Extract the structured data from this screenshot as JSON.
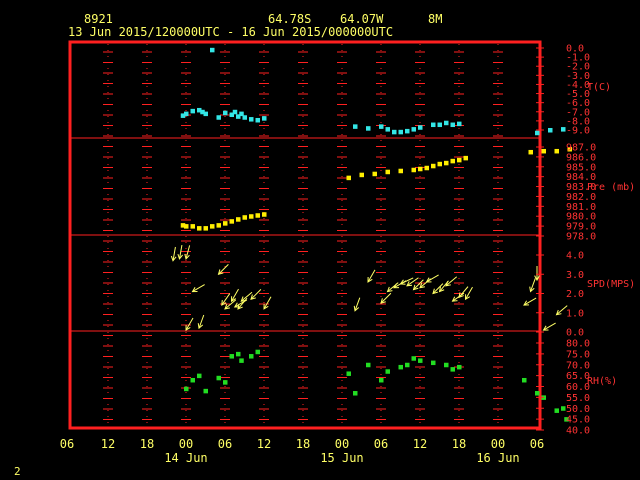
{
  "header": {
    "station": "8921",
    "lat": "64.78S",
    "lon": "64.07W",
    "height": "8M",
    "period": "13 Jun 2015/120000UTC - 16 Jun 2015/000000UTC"
  },
  "footer": {
    "page_number": "2"
  },
  "time_axis": {
    "hour_labels": [
      "06",
      "12",
      "18",
      "00",
      "06",
      "12",
      "18",
      "00",
      "06",
      "12",
      "18",
      "00",
      "06"
    ],
    "date_labels": [
      "14 Jun",
      "15 Jun",
      "16 Jun"
    ]
  },
  "colors": {
    "frame": "#ff2020",
    "text": "#ffff66",
    "temp": "#33e6e6",
    "pres": "#ffee00",
    "wind": "#ffff66",
    "rh": "#22dd22"
  },
  "chart_data": [
    {
      "type": "scatter",
      "name": "temperature",
      "ylabel": "T(C)",
      "ylim": [
        -9.0,
        0.0
      ],
      "tick_labels": [
        "0.0",
        "-1.0",
        "-2.0",
        "-3.0",
        "-4.0",
        "-5.0",
        "-6.0",
        "-7.0",
        "-8.0",
        "-9.0"
      ],
      "x_hours": [
        -0.5,
        0,
        1,
        2,
        2.5,
        3,
        4,
        5,
        6,
        7,
        7.5,
        8,
        8.5,
        9,
        10,
        11,
        12,
        26,
        28,
        30,
        31,
        32,
        33,
        34,
        35,
        36,
        38,
        39,
        40,
        41,
        42,
        54,
        56,
        58
      ],
      "values": [
        -7.4,
        -7.2,
        -6.9,
        -6.8,
        -7.0,
        -7.2,
        -0.2,
        -7.6,
        -7.1,
        -7.3,
        -7.0,
        -7.5,
        -7.2,
        -7.6,
        -7.8,
        -7.9,
        -7.7,
        -8.6,
        -8.8,
        -8.6,
        -8.9,
        -9.2,
        -9.2,
        -9.1,
        -8.9,
        -8.7,
        -8.4,
        -8.4,
        -8.2,
        -8.4,
        -8.3,
        -9.3,
        -9.0,
        -8.9
      ]
    },
    {
      "type": "scatter",
      "name": "pressure",
      "ylabel": "Pre (mb)",
      "ylim": [
        978.0,
        987.0
      ],
      "tick_labels": [
        "987.0",
        "986.0",
        "985.0",
        "984.0",
        "983.0",
        "982.0",
        "981.0",
        "980.0",
        "979.0",
        "978.0"
      ],
      "x_hours": [
        -0.5,
        0,
        1,
        2,
        3,
        4,
        5,
        6,
        7,
        8,
        9,
        10,
        11,
        12,
        25,
        27,
        29,
        31,
        33,
        35,
        36,
        37,
        38,
        39,
        40,
        41,
        42,
        43,
        53,
        55,
        57,
        59
      ],
      "values": [
        979.1,
        979.0,
        979.0,
        978.8,
        978.8,
        979.0,
        979.1,
        979.3,
        979.5,
        979.7,
        979.9,
        980.0,
        980.1,
        980.2,
        983.9,
        984.2,
        984.3,
        984.5,
        984.6,
        984.7,
        984.8,
        984.9,
        985.1,
        985.3,
        985.4,
        985.6,
        985.7,
        985.9,
        986.5,
        986.6,
        986.6,
        986.8
      ]
    },
    {
      "type": "scatter",
      "name": "wind",
      "ylabel": "SPD(MPS)",
      "ylim": [
        0.0,
        4.0
      ],
      "tick_labels": [
        "4.0",
        "3.0",
        "2.0",
        "1.0",
        "0.0"
      ],
      "x_hours": [
        -2,
        -1,
        0,
        0,
        1,
        2,
        5,
        5.5,
        6,
        7,
        7.5,
        8,
        8.5,
        10,
        12,
        26,
        28,
        30,
        31,
        32,
        33,
        34,
        35,
        36,
        37,
        38,
        39,
        40,
        41,
        42,
        43,
        52,
        53,
        54,
        55,
        57
      ],
      "values": [
        3.7,
        3.8,
        3.8,
        0.1,
        2.1,
        0.2,
        3.0,
        1.4,
        1.2,
        1.6,
        1.3,
        1.2,
        1.6,
        1.7,
        1.2,
        1.1,
        2.6,
        1.5,
        2.1,
        2.3,
        2.5,
        2.4,
        2.2,
        2.3,
        2.6,
        2.0,
        2.1,
        2.4,
        1.6,
        1.8,
        1.7,
        1.4,
        2.1,
        2.7,
        0.1,
        0.9
      ],
      "directions_deg": [
        80,
        80,
        75,
        60,
        30,
        70,
        45,
        55,
        40,
        60,
        30,
        50,
        40,
        45,
        60,
        70,
        60,
        45,
        40,
        30,
        25,
        35,
        45,
        40,
        30,
        45,
        50,
        40,
        35,
        50,
        60,
        30,
        70,
        90,
        30,
        40
      ]
    },
    {
      "type": "scatter",
      "name": "relative_humidity",
      "ylabel": "RH(%)",
      "ylim": [
        40.0,
        80.0
      ],
      "tick_labels": [
        "80.0",
        "75.0",
        "70.0",
        "65.0",
        "60.0",
        "55.0",
        "50.0",
        "45.0",
        "40.0"
      ],
      "x_hours": [
        0,
        1,
        2,
        3,
        5,
        6,
        7,
        8,
        8.5,
        10,
        11,
        25,
        26,
        28,
        30,
        31,
        33,
        34,
        35,
        36,
        38,
        40,
        41,
        42,
        52,
        54,
        55,
        57,
        58,
        58.5
      ],
      "values": [
        59,
        63,
        65,
        58,
        64,
        62,
        74,
        75,
        72,
        74,
        76,
        66,
        57,
        70,
        63,
        67,
        69,
        70,
        73,
        72,
        71,
        70,
        68,
        69,
        63,
        57,
        55,
        49,
        50,
        45
      ]
    }
  ]
}
